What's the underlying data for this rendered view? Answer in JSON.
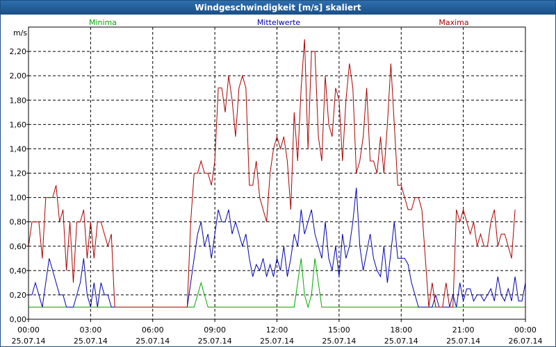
{
  "window": {
    "title": "Windgeschwindigkeit [m/s] skaliert"
  },
  "chart_data": {
    "type": "line",
    "ylabel": "m/s",
    "ylim": [
      0,
      2.4
    ],
    "grid": true,
    "legend_placement": "top",
    "xlim": [
      "2014-07-25T00:00",
      "2014-07-26T00:00"
    ],
    "y_ticks": [
      "0,00",
      "0,20",
      "0,40",
      "0,60",
      "0,80",
      "1,00",
      "1,20",
      "1,40",
      "1,60",
      "1,80",
      "2,00",
      "2,20"
    ],
    "x_ticks": [
      {
        "time": "00:00",
        "date": "25.07.14"
      },
      {
        "time": "03:00",
        "date": "25.07.14"
      },
      {
        "time": "06:00",
        "date": "25.07.14"
      },
      {
        "time": "09:00",
        "date": "25.07.14"
      },
      {
        "time": "12:00",
        "date": "25.07.14"
      },
      {
        "time": "15:00",
        "date": "25.07.14"
      },
      {
        "time": "18:00",
        "date": "25.07.14"
      },
      {
        "time": "21:00",
        "date": "25.07.14"
      },
      {
        "time": "00:00",
        "date": "26.07.14"
      }
    ],
    "series": [
      {
        "name": "Minima",
        "color": "#00aa00",
        "points": [
          [
            "00:00",
            0.1
          ],
          [
            "08:00",
            0.1
          ],
          [
            "08:10",
            0.2
          ],
          [
            "08:20",
            0.3
          ],
          [
            "08:30",
            0.2
          ],
          [
            "08:40",
            0.1
          ],
          [
            "12:50",
            0.1
          ],
          [
            "13:00",
            0.3
          ],
          [
            "13:10",
            0.5
          ],
          [
            "13:20",
            0.2
          ],
          [
            "13:30",
            0.1
          ],
          [
            "13:40",
            0.2
          ],
          [
            "13:50",
            0.5
          ],
          [
            "14:00",
            0.3
          ],
          [
            "14:10",
            0.1
          ],
          [
            "24:00",
            0.1
          ]
        ]
      },
      {
        "name": "Mittelwerte",
        "color": "#0000aa",
        "points": [
          [
            "00:00",
            0.2
          ],
          [
            "00:10",
            0.2
          ],
          [
            "00:20",
            0.3
          ],
          [
            "00:30",
            0.2
          ],
          [
            "00:40",
            0.1
          ],
          [
            "00:50",
            0.3
          ],
          [
            "01:00",
            0.5
          ],
          [
            "01:10",
            0.4
          ],
          [
            "01:20",
            0.3
          ],
          [
            "01:30",
            0.2
          ],
          [
            "01:40",
            0.2
          ],
          [
            "01:50",
            0.1
          ],
          [
            "02:00",
            0.1
          ],
          [
            "02:10",
            0.1
          ],
          [
            "02:20",
            0.2
          ],
          [
            "02:30",
            0.3
          ],
          [
            "02:40",
            0.5
          ],
          [
            "02:50",
            0.2
          ],
          [
            "03:00",
            0.1
          ],
          [
            "03:10",
            0.3
          ],
          [
            "03:20",
            0.1
          ],
          [
            "03:30",
            0.3
          ],
          [
            "03:40",
            0.2
          ],
          [
            "03:50",
            0.2
          ],
          [
            "04:00",
            0.1
          ],
          [
            "04:10",
            0.1
          ],
          [
            "07:40",
            0.1
          ],
          [
            "07:50",
            0.3
          ],
          [
            "08:00",
            0.5
          ],
          [
            "08:10",
            0.7
          ],
          [
            "08:20",
            0.8
          ],
          [
            "08:30",
            0.6
          ],
          [
            "08:40",
            0.7
          ],
          [
            "08:50",
            0.5
          ],
          [
            "09:00",
            0.7
          ],
          [
            "09:10",
            0.9
          ],
          [
            "09:20",
            0.8
          ],
          [
            "09:30",
            0.8
          ],
          [
            "09:40",
            0.9
          ],
          [
            "09:50",
            0.7
          ],
          [
            "10:00",
            0.8
          ],
          [
            "10:10",
            0.7
          ],
          [
            "10:20",
            0.6
          ],
          [
            "10:30",
            0.7
          ],
          [
            "10:40",
            0.5
          ],
          [
            "10:50",
            0.35
          ],
          [
            "11:00",
            0.45
          ],
          [
            "11:10",
            0.4
          ],
          [
            "11:20",
            0.5
          ],
          [
            "11:30",
            0.35
          ],
          [
            "11:40",
            0.45
          ],
          [
            "11:50",
            0.35
          ],
          [
            "12:00",
            0.5
          ],
          [
            "12:10",
            0.4
          ],
          [
            "12:20",
            0.6
          ],
          [
            "12:30",
            0.35
          ],
          [
            "12:40",
            0.5
          ],
          [
            "12:50",
            0.7
          ],
          [
            "13:00",
            0.6
          ],
          [
            "13:10",
            0.9
          ],
          [
            "13:20",
            0.7
          ],
          [
            "13:30",
            0.8
          ],
          [
            "13:40",
            0.9
          ],
          [
            "13:50",
            0.7
          ],
          [
            "14:00",
            0.6
          ],
          [
            "14:10",
            0.5
          ],
          [
            "14:20",
            0.8
          ],
          [
            "14:30",
            0.5
          ],
          [
            "14:40",
            0.4
          ],
          [
            "14:50",
            0.6
          ],
          [
            "15:00",
            0.35
          ],
          [
            "15:10",
            0.7
          ],
          [
            "15:20",
            0.5
          ],
          [
            "15:30",
            0.6
          ],
          [
            "15:40",
            0.8
          ],
          [
            "15:50",
            1.08
          ],
          [
            "16:00",
            0.6
          ],
          [
            "16:10",
            0.4
          ],
          [
            "16:20",
            0.55
          ],
          [
            "16:30",
            0.7
          ],
          [
            "16:40",
            0.5
          ],
          [
            "16:50",
            0.4
          ],
          [
            "17:00",
            0.35
          ],
          [
            "17:10",
            0.6
          ],
          [
            "17:20",
            0.3
          ],
          [
            "17:30",
            0.55
          ],
          [
            "17:40",
            0.8
          ],
          [
            "17:50",
            0.5
          ],
          [
            "18:00",
            0.5
          ],
          [
            "18:10",
            0.5
          ],
          [
            "18:20",
            0.45
          ],
          [
            "18:30",
            0.3
          ],
          [
            "18:40",
            0.2
          ],
          [
            "18:50",
            0.1
          ],
          [
            "19:00",
            0.1
          ],
          [
            "19:10",
            0.1
          ],
          [
            "19:20",
            0.1
          ],
          [
            "19:30",
            0.1
          ],
          [
            "19:40",
            0.2
          ],
          [
            "19:50",
            0.1
          ],
          [
            "20:00",
            0.1
          ],
          [
            "20:10",
            0.1
          ],
          [
            "20:20",
            0.1
          ],
          [
            "20:30",
            0.2
          ],
          [
            "20:40",
            0.1
          ],
          [
            "20:50",
            0.3
          ],
          [
            "21:00",
            0.15
          ],
          [
            "21:10",
            0.25
          ],
          [
            "21:20",
            0.25
          ],
          [
            "21:30",
            0.15
          ],
          [
            "21:40",
            0.2
          ],
          [
            "21:50",
            0.2
          ],
          [
            "22:00",
            0.15
          ],
          [
            "22:10",
            0.2
          ],
          [
            "22:20",
            0.25
          ],
          [
            "22:30",
            0.15
          ],
          [
            "22:40",
            0.35
          ],
          [
            "22:50",
            0.2
          ],
          [
            "23:00",
            0.15
          ],
          [
            "23:10",
            0.25
          ],
          [
            "23:20",
            0.15
          ],
          [
            "23:30",
            0.35
          ],
          [
            "23:40",
            0.15
          ],
          [
            "23:50",
            0.15
          ],
          [
            "24:00",
            0.3
          ]
        ]
      },
      {
        "name": "Maxima",
        "color": "#aa0000",
        "points": [
          [
            "00:00",
            0.6
          ],
          [
            "00:10",
            0.8
          ],
          [
            "00:20",
            0.8
          ],
          [
            "00:30",
            0.8
          ],
          [
            "00:40",
            0.5
          ],
          [
            "00:50",
            1.0
          ],
          [
            "01:00",
            1.0
          ],
          [
            "01:10",
            1.0
          ],
          [
            "01:20",
            1.1
          ],
          [
            "01:30",
            0.8
          ],
          [
            "01:40",
            0.9
          ],
          [
            "01:50",
            0.4
          ],
          [
            "02:00",
            0.8
          ],
          [
            "02:10",
            0.3
          ],
          [
            "02:20",
            0.8
          ],
          [
            "02:30",
            0.8
          ],
          [
            "02:40",
            0.9
          ],
          [
            "02:50",
            0.5
          ],
          [
            "03:00",
            0.8
          ],
          [
            "03:10",
            0.5
          ],
          [
            "03:20",
            0.8
          ],
          [
            "03:30",
            0.8
          ],
          [
            "03:40",
            0.7
          ],
          [
            "03:50",
            0.6
          ],
          [
            "04:00",
            0.7
          ],
          [
            "04:10",
            0.1
          ],
          [
            "07:40",
            0.1
          ],
          [
            "07:50",
            0.8
          ],
          [
            "08:00",
            1.2
          ],
          [
            "08:10",
            1.2
          ],
          [
            "08:20",
            1.3
          ],
          [
            "08:30",
            1.2
          ],
          [
            "08:40",
            1.2
          ],
          [
            "08:50",
            1.1
          ],
          [
            "09:00",
            1.3
          ],
          [
            "09:10",
            1.9
          ],
          [
            "09:20",
            1.9
          ],
          [
            "09:30",
            1.7
          ],
          [
            "09:40",
            2.0
          ],
          [
            "09:50",
            1.8
          ],
          [
            "10:00",
            1.5
          ],
          [
            "10:10",
            1.9
          ],
          [
            "10:20",
            2.0
          ],
          [
            "10:30",
            1.9
          ],
          [
            "10:40",
            1.1
          ],
          [
            "10:50",
            1.1
          ],
          [
            "11:00",
            1.3
          ],
          [
            "11:10",
            1.0
          ],
          [
            "11:20",
            0.9
          ],
          [
            "11:30",
            0.8
          ],
          [
            "11:40",
            1.2
          ],
          [
            "11:50",
            1.4
          ],
          [
            "12:00",
            1.5
          ],
          [
            "12:10",
            1.4
          ],
          [
            "12:20",
            1.5
          ],
          [
            "12:30",
            1.3
          ],
          [
            "12:40",
            0.9
          ],
          [
            "12:50",
            1.7
          ],
          [
            "13:00",
            1.3
          ],
          [
            "13:10",
            1.9
          ],
          [
            "13:20",
            2.3
          ],
          [
            "13:30",
            1.4
          ],
          [
            "13:40",
            2.2
          ],
          [
            "13:50",
            2.2
          ],
          [
            "14:00",
            1.5
          ],
          [
            "14:10",
            1.3
          ],
          [
            "14:20",
            2.0
          ],
          [
            "14:30",
            1.6
          ],
          [
            "14:40",
            1.5
          ],
          [
            "14:50",
            1.9
          ],
          [
            "15:00",
            1.8
          ],
          [
            "15:10",
            1.3
          ],
          [
            "15:20",
            1.8
          ],
          [
            "15:30",
            2.1
          ],
          [
            "15:40",
            1.9
          ],
          [
            "15:50",
            1.2
          ],
          [
            "16:00",
            1.3
          ],
          [
            "16:10",
            1.5
          ],
          [
            "16:20",
            1.9
          ],
          [
            "16:30",
            1.3
          ],
          [
            "16:40",
            1.3
          ],
          [
            "16:50",
            1.2
          ],
          [
            "17:00",
            1.5
          ],
          [
            "17:10",
            1.2
          ],
          [
            "17:20",
            1.6
          ],
          [
            "17:30",
            2.1
          ],
          [
            "17:40",
            1.6
          ],
          [
            "17:50",
            1.1
          ],
          [
            "18:00",
            1.1
          ],
          [
            "18:10",
            1.0
          ],
          [
            "18:20",
            0.9
          ],
          [
            "18:30",
            0.9
          ],
          [
            "18:40",
            1.0
          ],
          [
            "18:50",
            1.0
          ],
          [
            "19:00",
            0.9
          ],
          [
            "19:10",
            0.5
          ],
          [
            "19:20",
            0.1
          ],
          [
            "19:30",
            0.3
          ],
          [
            "19:40",
            0.1
          ],
          [
            "19:50",
            0.1
          ],
          [
            "20:00",
            0.1
          ],
          [
            "20:10",
            0.3
          ],
          [
            "20:20",
            0.1
          ],
          [
            "20:30",
            0.1
          ],
          [
            "20:40",
            0.9
          ],
          [
            "20:50",
            0.8
          ],
          [
            "21:00",
            0.9
          ],
          [
            "21:10",
            0.8
          ],
          [
            "21:20",
            0.7
          ],
          [
            "21:30",
            0.8
          ],
          [
            "21:40",
            0.6
          ],
          [
            "21:50",
            0.7
          ],
          [
            "22:00",
            0.6
          ],
          [
            "22:10",
            0.6
          ],
          [
            "22:20",
            0.8
          ],
          [
            "22:30",
            0.9
          ],
          [
            "22:40",
            0.6
          ],
          [
            "22:50",
            0.7
          ],
          [
            "23:00",
            0.7
          ],
          [
            "23:10",
            0.6
          ],
          [
            "23:20",
            0.5
          ],
          [
            "23:30",
            0.9
          ]
        ]
      }
    ]
  }
}
